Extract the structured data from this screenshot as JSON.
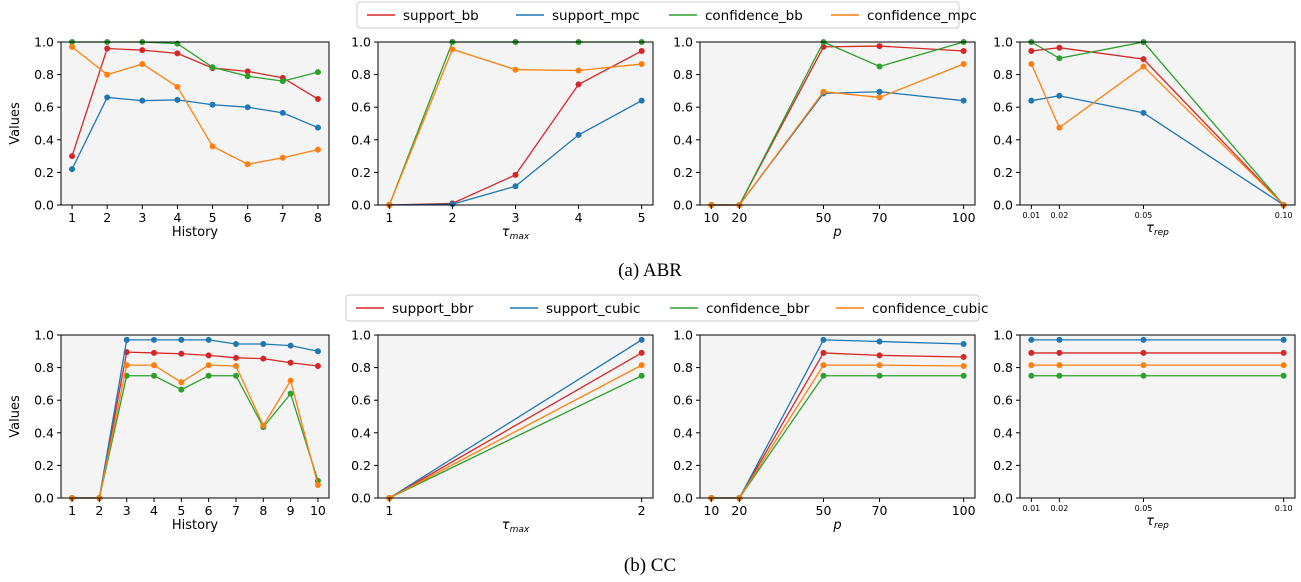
{
  "colors": {
    "support_a": "#d62728",
    "support_b": "#1f77b4",
    "confidence_a": "#2ca02c",
    "confidence_b": "#ff7f0e",
    "plot_bg": "#f4f4f4"
  },
  "rows": [
    {
      "caption": "(a) ABR",
      "ylabel": "Values",
      "legend": [
        "support_bb",
        "support_mpc",
        "confidence_bb",
        "confidence_mpc"
      ],
      "yticks": [
        "0.0",
        "0.2",
        "0.4",
        "0.6",
        "0.8",
        "1.0"
      ]
    },
    {
      "caption": "(b) CC",
      "ylabel": "Values",
      "legend": [
        "support_bbr",
        "support_cubic",
        "confidence_bbr",
        "confidence_cubic"
      ],
      "yticks": [
        "0.0",
        "0.2",
        "0.4",
        "0.6",
        "0.8",
        "1.0"
      ]
    }
  ],
  "chart_data": [
    {
      "type": "line",
      "row": 0,
      "col": 0,
      "xlabel": "History",
      "ylim": [
        0,
        1
      ],
      "grid": false,
      "x": [
        1,
        2,
        3,
        4,
        5,
        6,
        7,
        8
      ],
      "xticks": [
        "1",
        "2",
        "3",
        "4",
        "5",
        "6",
        "7",
        "8"
      ],
      "series": [
        {
          "name": "support_bb",
          "values": [
            0.3,
            0.96,
            0.95,
            0.93,
            0.84,
            0.82,
            0.78,
            0.65
          ]
        },
        {
          "name": "support_mpc",
          "values": [
            0.22,
            0.66,
            0.64,
            0.645,
            0.615,
            0.6,
            0.565,
            0.475
          ]
        },
        {
          "name": "confidence_bb",
          "values": [
            1.0,
            1.0,
            1.0,
            0.99,
            0.845,
            0.79,
            0.76,
            0.815
          ]
        },
        {
          "name": "confidence_mpc",
          "values": [
            0.97,
            0.8,
            0.865,
            0.725,
            0.36,
            0.25,
            0.29,
            0.34
          ]
        }
      ]
    },
    {
      "type": "line",
      "row": 0,
      "col": 1,
      "xlabel": "τ",
      "xlabel_sub": "max",
      "ylim": [
        0,
        1
      ],
      "grid": false,
      "x": [
        1,
        2,
        3,
        4,
        5
      ],
      "xticks": [
        "1",
        "2",
        "3",
        "4",
        "5"
      ],
      "series": [
        {
          "name": "support_bb",
          "values": [
            0.0,
            0.01,
            0.185,
            0.74,
            0.945
          ]
        },
        {
          "name": "support_mpc",
          "values": [
            0.0,
            0.005,
            0.115,
            0.43,
            0.64
          ]
        },
        {
          "name": "confidence_bb",
          "values": [
            0.0,
            1.0,
            1.0,
            1.0,
            1.0
          ]
        },
        {
          "name": "confidence_mpc",
          "values": [
            0.0,
            0.955,
            0.83,
            0.825,
            0.865
          ]
        }
      ]
    },
    {
      "type": "line",
      "row": 0,
      "col": 2,
      "xlabel": "p",
      "ylim": [
        0,
        1
      ],
      "grid": false,
      "x": [
        10,
        20,
        50,
        70,
        100
      ],
      "xticks": [
        "10",
        "20",
        "50",
        "70",
        "100"
      ],
      "series": [
        {
          "name": "support_bb",
          "values": [
            0.0,
            0.0,
            0.97,
            0.975,
            0.945
          ]
        },
        {
          "name": "support_mpc",
          "values": [
            0.0,
            0.0,
            0.685,
            0.695,
            0.64
          ]
        },
        {
          "name": "confidence_bb",
          "values": [
            0.0,
            0.0,
            1.0,
            0.85,
            1.0
          ]
        },
        {
          "name": "confidence_mpc",
          "values": [
            0.0,
            0.0,
            0.695,
            0.66,
            0.865
          ]
        }
      ]
    },
    {
      "type": "line",
      "row": 0,
      "col": 3,
      "xlabel": "τ",
      "xlabel_sub": "rep",
      "ylim": [
        0,
        1
      ],
      "grid": false,
      "x": [
        0.01,
        0.02,
        0.05,
        0.1
      ],
      "xticks": [
        "0.01",
        "0.02",
        "0.05",
        "0.10"
      ],
      "series": [
        {
          "name": "support_bb",
          "values": [
            0.945,
            0.965,
            0.895,
            0.0
          ]
        },
        {
          "name": "support_mpc",
          "values": [
            0.64,
            0.67,
            0.565,
            0.0
          ]
        },
        {
          "name": "confidence_bb",
          "values": [
            1.0,
            0.9,
            1.0,
            0.0
          ]
        },
        {
          "name": "confidence_mpc",
          "values": [
            0.865,
            0.475,
            0.85,
            0.0
          ]
        }
      ]
    },
    {
      "type": "line",
      "row": 1,
      "col": 0,
      "xlabel": "History",
      "ylim": [
        0,
        1
      ],
      "grid": false,
      "x": [
        1,
        2,
        3,
        4,
        5,
        6,
        7,
        8,
        9,
        10
      ],
      "xticks": [
        "1",
        "2",
        "3",
        "4",
        "5",
        "6",
        "7",
        "8",
        "9",
        "10"
      ],
      "series": [
        {
          "name": "support_bbr",
          "values": [
            0.0,
            0.0,
            0.895,
            0.89,
            0.885,
            0.875,
            0.86,
            0.855,
            0.83,
            0.81
          ]
        },
        {
          "name": "support_cubic",
          "values": [
            0.0,
            0.0,
            0.97,
            0.97,
            0.97,
            0.97,
            0.945,
            0.945,
            0.935,
            0.9
          ]
        },
        {
          "name": "confidence_bbr",
          "values": [
            0.0,
            0.0,
            0.75,
            0.75,
            0.665,
            0.75,
            0.75,
            0.435,
            0.64,
            0.105
          ]
        },
        {
          "name": "confidence_cubic",
          "values": [
            0.0,
            0.0,
            0.815,
            0.815,
            0.71,
            0.815,
            0.81,
            0.445,
            0.72,
            0.08
          ]
        }
      ]
    },
    {
      "type": "line",
      "row": 1,
      "col": 1,
      "xlabel": "τ",
      "xlabel_sub": "max",
      "ylim": [
        0,
        1
      ],
      "grid": false,
      "x": [
        1,
        2
      ],
      "xticks": [
        "1",
        "2"
      ],
      "series": [
        {
          "name": "support_bbr",
          "values": [
            0.0,
            0.89
          ]
        },
        {
          "name": "support_cubic",
          "values": [
            0.0,
            0.97
          ]
        },
        {
          "name": "confidence_bbr",
          "values": [
            0.0,
            0.75
          ]
        },
        {
          "name": "confidence_cubic",
          "values": [
            0.0,
            0.815
          ]
        }
      ]
    },
    {
      "type": "line",
      "row": 1,
      "col": 2,
      "xlabel": "p",
      "ylim": [
        0,
        1
      ],
      "grid": false,
      "x": [
        10,
        20,
        50,
        70,
        100
      ],
      "xticks": [
        "10",
        "20",
        "50",
        "70",
        "100"
      ],
      "series": [
        {
          "name": "support_bbr",
          "values": [
            0.0,
            0.0,
            0.89,
            0.875,
            0.865
          ]
        },
        {
          "name": "support_cubic",
          "values": [
            0.0,
            0.0,
            0.97,
            0.96,
            0.945
          ]
        },
        {
          "name": "confidence_bbr",
          "values": [
            0.0,
            0.0,
            0.75,
            0.75,
            0.75
          ]
        },
        {
          "name": "confidence_cubic",
          "values": [
            0.0,
            0.0,
            0.815,
            0.815,
            0.81
          ]
        }
      ]
    },
    {
      "type": "line",
      "row": 1,
      "col": 3,
      "xlabel": "τ",
      "xlabel_sub": "rep",
      "ylim": [
        0,
        1
      ],
      "grid": false,
      "x": [
        0.01,
        0.02,
        0.05,
        0.1
      ],
      "xticks": [
        "0.01",
        "0.02",
        "0.05",
        "0.10"
      ],
      "series": [
        {
          "name": "support_bbr",
          "values": [
            0.89,
            0.89,
            0.89,
            0.89
          ]
        },
        {
          "name": "support_cubic",
          "values": [
            0.97,
            0.97,
            0.97,
            0.97
          ]
        },
        {
          "name": "confidence_bbr",
          "values": [
            0.75,
            0.75,
            0.75,
            0.75
          ]
        },
        {
          "name": "confidence_cubic",
          "values": [
            0.815,
            0.815,
            0.815,
            0.815
          ]
        }
      ]
    }
  ]
}
